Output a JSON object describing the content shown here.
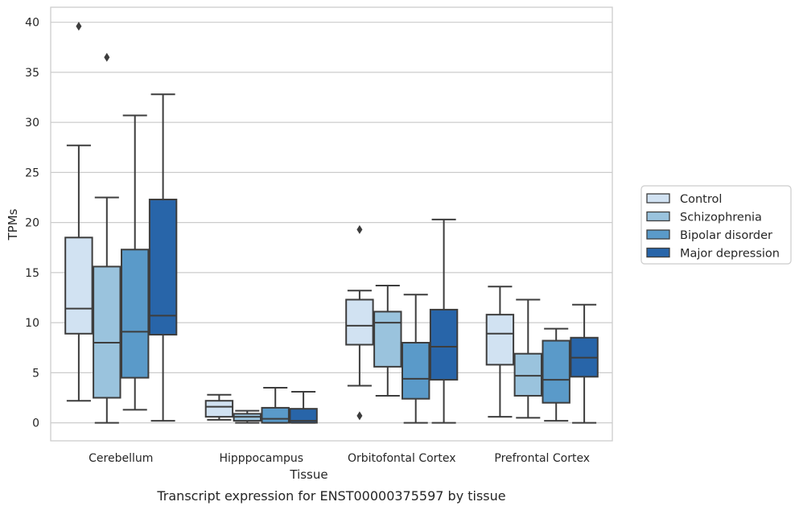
{
  "chart_data": {
    "type": "box",
    "caption": "Transcript expression for ENST00000375597 by tissue",
    "xlabel": "Tissue",
    "ylabel": "TPMs",
    "ylim": [
      -1.8,
      41.5
    ],
    "yticks": [
      0,
      5,
      10,
      15,
      20,
      25,
      30,
      35,
      40
    ],
    "grid": "horizontal",
    "legend_position": "right",
    "categories": [
      "Cerebellum",
      "Hipppocampus",
      "Orbitofontal Cortex",
      "Prefrontal Cortex"
    ],
    "series": [
      {
        "name": "Control",
        "color": "#d1e2f2",
        "boxes": [
          {
            "whislo": 2.2,
            "q1": 8.9,
            "med": 11.4,
            "q3": 18.5,
            "whishi": 27.7,
            "fliers": [
              39.6
            ]
          },
          {
            "whislo": 0.3,
            "q1": 0.6,
            "med": 1.6,
            "q3": 2.2,
            "whishi": 2.8,
            "fliers": []
          },
          {
            "whislo": 3.7,
            "q1": 7.8,
            "med": 9.7,
            "q3": 12.3,
            "whishi": 13.2,
            "fliers": [
              19.3,
              0.7
            ]
          },
          {
            "whislo": 0.6,
            "q1": 5.8,
            "med": 8.9,
            "q3": 10.8,
            "whishi": 13.6,
            "fliers": []
          }
        ]
      },
      {
        "name": "Schizophrenia",
        "color": "#9ac3dd",
        "boxes": [
          {
            "whislo": 0.0,
            "q1": 2.5,
            "med": 8.0,
            "q3": 15.6,
            "whishi": 22.5,
            "fliers": [
              36.5
            ]
          },
          {
            "whislo": 0.0,
            "q1": 0.2,
            "med": 0.6,
            "q3": 0.9,
            "whishi": 1.2,
            "fliers": []
          },
          {
            "whislo": 2.7,
            "q1": 5.6,
            "med": 10.0,
            "q3": 11.1,
            "whishi": 13.7,
            "fliers": []
          },
          {
            "whislo": 0.5,
            "q1": 2.7,
            "med": 4.7,
            "q3": 6.9,
            "whishi": 12.3,
            "fliers": []
          }
        ]
      },
      {
        "name": "Bipolar disorder",
        "color": "#5a9ac9",
        "boxes": [
          {
            "whislo": 1.3,
            "q1": 4.5,
            "med": 9.1,
            "q3": 17.3,
            "whishi": 30.7,
            "fliers": []
          },
          {
            "whislo": 0.0,
            "q1": 0.0,
            "med": 0.4,
            "q3": 1.5,
            "whishi": 3.5,
            "fliers": []
          },
          {
            "whislo": 0.0,
            "q1": 2.4,
            "med": 4.4,
            "q3": 8.0,
            "whishi": 12.8,
            "fliers": []
          },
          {
            "whislo": 0.2,
            "q1": 2.0,
            "med": 4.3,
            "q3": 8.2,
            "whishi": 9.4,
            "fliers": []
          }
        ]
      },
      {
        "name": "Major depression",
        "color": "#2865a9",
        "boxes": [
          {
            "whislo": 0.2,
            "q1": 8.8,
            "med": 10.7,
            "q3": 22.3,
            "whishi": 32.8,
            "fliers": []
          },
          {
            "whislo": 0.0,
            "q1": 0.0,
            "med": 0.2,
            "q3": 1.4,
            "whishi": 3.1,
            "fliers": []
          },
          {
            "whislo": 0.0,
            "q1": 4.3,
            "med": 7.6,
            "q3": 11.3,
            "whishi": 20.3,
            "fliers": []
          },
          {
            "whislo": 0.0,
            "q1": 4.6,
            "med": 6.5,
            "q3": 8.5,
            "whishi": 11.8,
            "fliers": []
          }
        ]
      }
    ]
  }
}
